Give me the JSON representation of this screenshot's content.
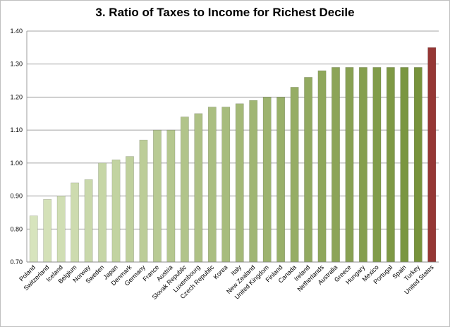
{
  "chart_data": {
    "type": "bar",
    "title": "3. Ratio of Taxes to Income for Richest Decile",
    "xlabel": "",
    "ylabel": "",
    "ylim": [
      0.7,
      1.4
    ],
    "yticks": [
      "0.70",
      "0.80",
      "0.90",
      "1.00",
      "1.10",
      "1.20",
      "1.30",
      "1.40"
    ],
    "grid": true,
    "categories": [
      "Poland",
      "Switzerland",
      "Iceland",
      "Belgium",
      "Norway",
      "Sweden",
      "Japan",
      "Denmark",
      "Germany",
      "France",
      "Austria",
      "Slovak Republic",
      "Luxembourg",
      "Czech Republic",
      "Korea",
      "Italy",
      "New Zealand",
      "United Kingdom",
      "Finland",
      "Canada",
      "Ireland",
      "Netherlands",
      "Australia",
      "Greece",
      "Hungary",
      "Mexico",
      "Portugal",
      "Spain",
      "Turkey",
      "United States"
    ],
    "values": [
      0.84,
      0.89,
      0.9,
      0.94,
      0.95,
      1.0,
      1.01,
      1.02,
      1.07,
      1.1,
      1.1,
      1.14,
      1.15,
      1.17,
      1.17,
      1.18,
      1.19,
      1.2,
      1.2,
      1.23,
      1.26,
      1.28,
      1.29,
      1.29,
      1.29,
      1.29,
      1.29,
      1.29,
      1.29,
      1.35
    ],
    "colors": {
      "gradient_start": "#d7e4bd",
      "gradient_end": "#77933c",
      "highlight": "#953735",
      "gridline": "#868686"
    },
    "highlight_category": "United States"
  }
}
